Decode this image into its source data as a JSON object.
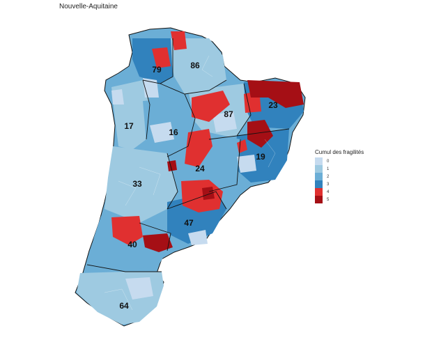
{
  "title": "Nouvelle-Aquitaine",
  "departments": [
    {
      "code": "79"
    },
    {
      "code": "86"
    },
    {
      "code": "17"
    },
    {
      "code": "16"
    },
    {
      "code": "87"
    },
    {
      "code": "23"
    },
    {
      "code": "19"
    },
    {
      "code": "24"
    },
    {
      "code": "33"
    },
    {
      "code": "47"
    },
    {
      "code": "40"
    },
    {
      "code": "64"
    }
  ],
  "legend": {
    "title": "Cumul des fragilités",
    "items": [
      {
        "label": "0",
        "color": "#c6dbef"
      },
      {
        "label": "1",
        "color": "#9ecae1"
      },
      {
        "label": "2",
        "color": "#6baed6"
      },
      {
        "label": "3",
        "color": "#3182bd"
      },
      {
        "label": "4",
        "color": "#e03030"
      },
      {
        "label": "5",
        "color": "#a50f15"
      }
    ]
  }
}
